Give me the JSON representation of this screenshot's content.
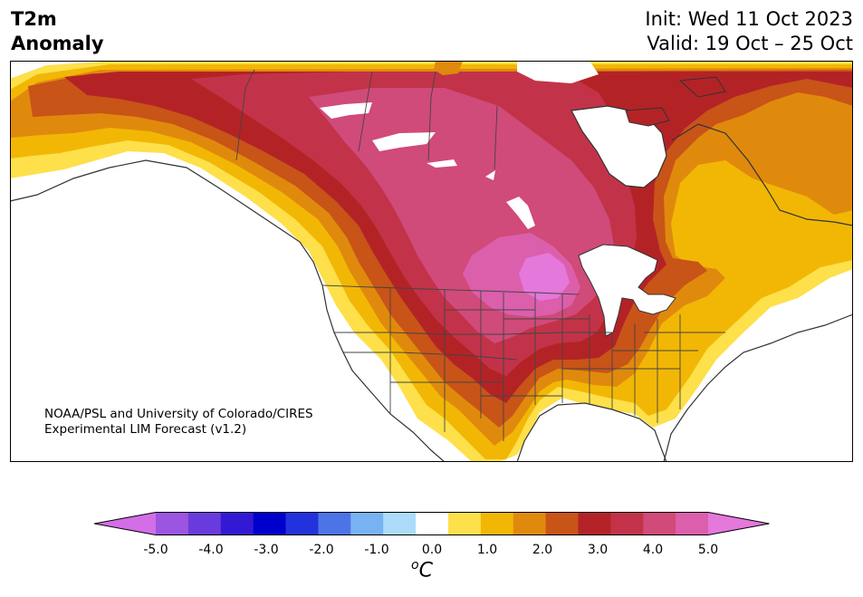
{
  "title": {
    "left_line1": "T2m",
    "left_line2": "Anomaly",
    "right_line1": "Init: Wed 11 Oct 2023",
    "right_line2": "Valid: 19 Oct – 25 Oct"
  },
  "credit": {
    "line1": "NOAA/PSL and University of Colorado/CIRES",
    "line2": "Experimental LIM Forecast (v1.2)"
  },
  "colorbar": {
    "unit_base": "C",
    "unit_sup": "o",
    "ticks": [
      "-5.0",
      "-4.0",
      "-3.0",
      "-2.0",
      "-1.0",
      "0.0",
      "1.0",
      "2.0",
      "3.0",
      "4.0",
      "5.0"
    ],
    "levels": [
      -5.0,
      -4.5,
      -4.0,
      -3.5,
      -3.0,
      -2.5,
      -2.0,
      -1.5,
      -1.0,
      -0.5,
      0.5,
      1.0,
      1.5,
      2.0,
      2.5,
      3.0,
      3.5,
      4.0,
      4.5,
      5.0
    ],
    "colors": [
      "#d36ee6",
      "#9b55e0",
      "#6a3bdc",
      "#3419d4",
      "#0000cc",
      "#2232dd",
      "#4d74e6",
      "#79b2f2",
      "#acdcfa",
      "#ffffff",
      "#fde04a",
      "#f2b705",
      "#e08a0d",
      "#c85418",
      "#b32326",
      "#c23349",
      "#d04a7a",
      "#dc5fac",
      "#e478db"
    ]
  },
  "map": {
    "region": "North America",
    "anomaly_colors": {
      "band_1_0": "#fde04a",
      "band_1_5": "#f2b705",
      "band_2_0": "#e08a0d",
      "band_2_5": "#c85418",
      "band_3_0": "#b32326",
      "band_3_5": "#c23349",
      "band_4_0": "#d04a7a",
      "band_4_5": "#dc5fac"
    }
  }
}
